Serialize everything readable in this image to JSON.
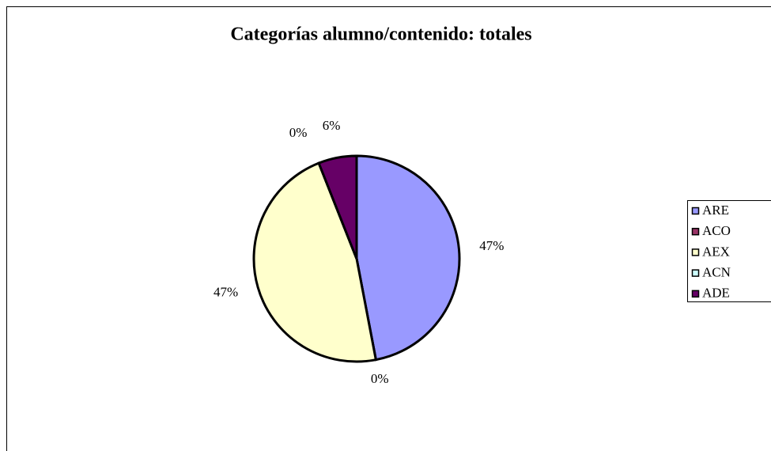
{
  "chart_data": {
    "type": "pie",
    "title": "Categorías alumno/contenido: totales",
    "categories": [
      "ARE",
      "ACO",
      "AEX",
      "ACN",
      "ADE"
    ],
    "values": [
      47,
      0,
      47,
      0,
      6
    ],
    "value_labels": [
      "47%",
      "0%",
      "47%",
      "0%",
      "6%"
    ],
    "colors": [
      "#9999ff",
      "#993366",
      "#ffffcc",
      "#ccffff",
      "#660066"
    ],
    "legend": "right"
  }
}
